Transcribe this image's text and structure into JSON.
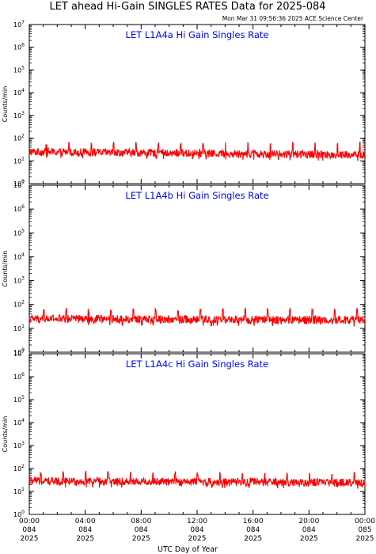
{
  "header": {
    "title": "LET ahead Hi-Gain SINGLES RATES Data for 2025-084",
    "timestamp": "Mon Mar 31 09:56:36 2025 ACE Science Center"
  },
  "colors": {
    "series": "#ff0000",
    "panel_title": "#0000ff",
    "axis": "#000000",
    "background": "#ffffff"
  },
  "chart_data": [
    {
      "type": "line",
      "title": "LET L1A4a Hi Gain Singles Rate",
      "xlabel": "UTC Day of Year",
      "ylabel": "Counts/min",
      "yscale": "log",
      "ylim": [
        1,
        10000000
      ],
      "xlim": [
        0,
        24
      ],
      "x_ticks": [
        "00:00",
        "04:00",
        "08:00",
        "12:00",
        "16:00",
        "20:00",
        "00:00"
      ],
      "series": [
        {
          "baseline": 25,
          "spike_peak": 60,
          "end_value": 18
        }
      ]
    },
    {
      "type": "line",
      "title": "LET L1A4b Hi Gain Singles Rate",
      "xlabel": "UTC Day of Year",
      "ylabel": "Counts/min",
      "yscale": "log",
      "ylim": [
        1,
        10000000
      ],
      "xlim": [
        0,
        24
      ],
      "x_ticks": [
        "00:00",
        "04:00",
        "08:00",
        "12:00",
        "16:00",
        "20:00",
        "00:00"
      ],
      "series": [
        {
          "baseline": 25,
          "spike_peak": 60,
          "end_value": 22
        }
      ]
    },
    {
      "type": "line",
      "title": "LET L1A4c Hi Gain Singles Rate",
      "xlabel": "UTC Day of Year",
      "ylabel": "Counts/min",
      "yscale": "log",
      "ylim": [
        1,
        10000000
      ],
      "xlim": [
        0,
        24
      ],
      "x_ticks": [
        "00:00",
        "04:00",
        "08:00",
        "12:00",
        "16:00",
        "20:00",
        "00:00"
      ],
      "series": [
        {
          "baseline": 28,
          "spike_peak": 65,
          "end_value": 24
        }
      ]
    }
  ],
  "x_axis": {
    "label": "UTC Day of Year",
    "ticks": [
      {
        "time": "00:00",
        "day": "084",
        "year": "2025"
      },
      {
        "time": "04:00",
        "day": "084",
        "year": "2025"
      },
      {
        "time": "08:00",
        "day": "084",
        "year": "2025"
      },
      {
        "time": "12:00",
        "day": "084",
        "year": "2025"
      },
      {
        "time": "16:00",
        "day": "084",
        "year": "2025"
      },
      {
        "time": "20:00",
        "day": "084",
        "year": "2025"
      },
      {
        "time": "00:00",
        "day": "085",
        "year": "2025"
      }
    ]
  }
}
